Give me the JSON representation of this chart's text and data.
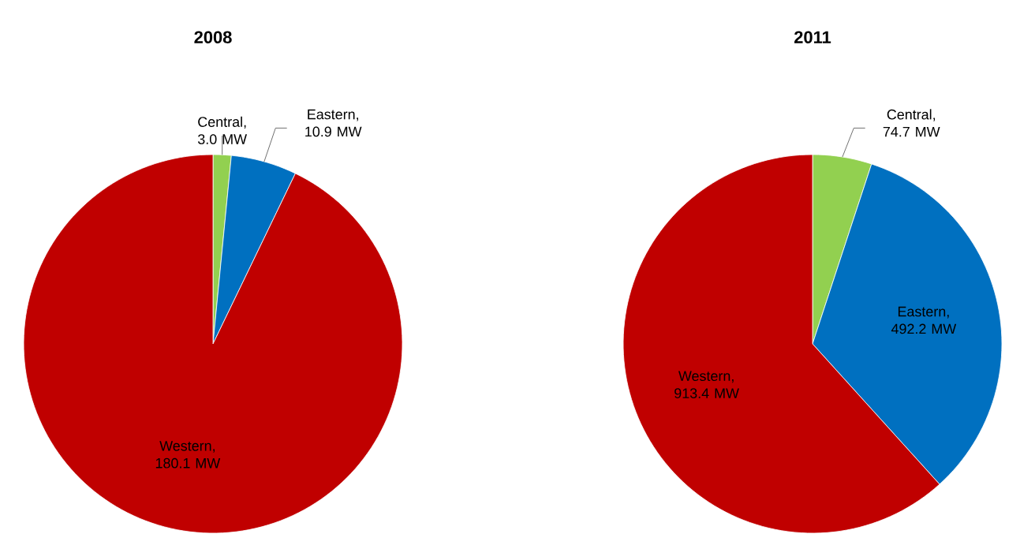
{
  "chart_data": [
    {
      "type": "pie",
      "title": "2008",
      "categories": [
        "Central",
        "Eastern",
        "Western"
      ],
      "values": [
        3.0,
        10.9,
        180.1
      ],
      "colors": [
        "#92d050",
        "#0070c0",
        "#c00000"
      ],
      "value_labels": [
        ", 3.0 MW",
        ", 10.9 MW",
        ", 180.1 MW"
      ]
    },
    {
      "type": "pie",
      "title": "2011",
      "categories": [
        "Central",
        "Eastern",
        "Western"
      ],
      "values": [
        74.7,
        492.2,
        913.4
      ],
      "colors": [
        "#92d050",
        "#0070c0",
        "#c00000"
      ],
      "value_labels": [
        ", 74.7 MW",
        ", 492.2 MW",
        ", 913.4 MW"
      ]
    }
  ]
}
